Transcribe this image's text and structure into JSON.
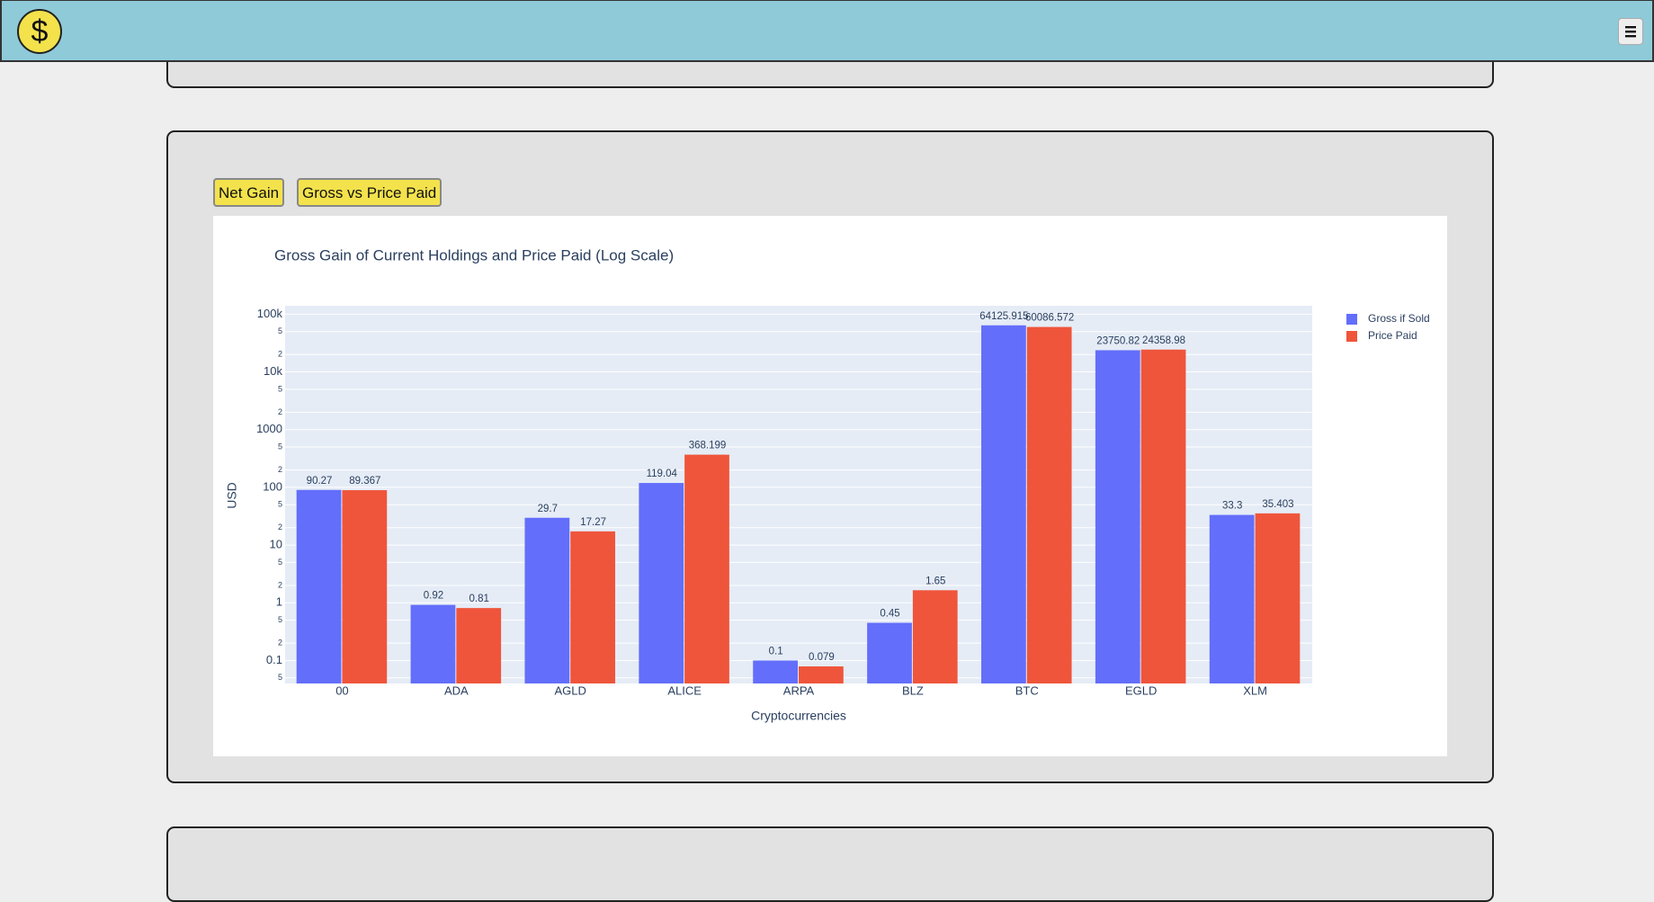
{
  "nav": {
    "logo": "$"
  },
  "buttons": [
    "Net Gain",
    "Gross vs Price Paid"
  ],
  "chart_data": {
    "type": "bar",
    "title": "Gross Gain of Current Holdings and Price Paid (Log Scale)",
    "x_label": "Cryptocurrencies",
    "y_label": "USD",
    "categories": [
      "00",
      "ADA",
      "AGLD",
      "ALICE",
      "ARPA",
      "BLZ",
      "BTC",
      "EGLD",
      "XLM"
    ],
    "series": [
      {
        "name": "Gross if Sold",
        "color": "#636efa",
        "values": [
          90.27,
          0.92,
          29.7,
          119.04,
          0.1,
          0.45,
          64125.915,
          23750.82,
          33.3
        ]
      },
      {
        "name": "Price Paid",
        "color": "#ef553b",
        "values": [
          89.367,
          0.81,
          17.27,
          368.199,
          0.079,
          1.65,
          60086.572,
          24358.98,
          35.403
        ]
      }
    ],
    "log_y": true,
    "ylim": [
      0.04,
      140000
    ],
    "yticks": [
      {
        "value": 0.05,
        "label": "5"
      },
      0.1,
      {
        "value": 0.2,
        "label": "2"
      },
      {
        "value": 0.5,
        "label": "5"
      },
      1,
      2,
      5,
      10,
      {
        "value": 20,
        "label": "2"
      },
      {
        "value": 50,
        "label": "5"
      },
      100,
      {
        "value": 200,
        "label": "2"
      },
      {
        "value": 500,
        "label": "5"
      },
      1000,
      {
        "value": 2000,
        "label": "2"
      },
      {
        "value": 5000,
        "label": "5"
      },
      {
        "value": 10000,
        "label": "10k"
      },
      {
        "value": 20000,
        "label": "2"
      },
      {
        "value": 50000,
        "label": "5"
      },
      {
        "value": 100000,
        "label": "100k"
      }
    ],
    "grid": true,
    "legend": "top-right"
  }
}
